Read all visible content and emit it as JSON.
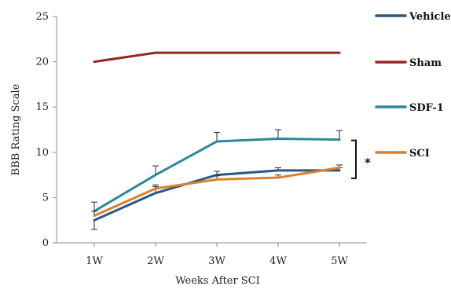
{
  "chart_data": {
    "type": "line",
    "xlabel": "Weeks After SCI",
    "ylabel": "BBB Rating Scale",
    "categories": [
      "1W",
      "2W",
      "3W",
      "4W",
      "5W"
    ],
    "ylim": [
      0,
      25
    ],
    "yticks": [
      0,
      5,
      10,
      15,
      20,
      25
    ],
    "grid": false,
    "legend_position": "right",
    "series": [
      {
        "name": "Vehicle",
        "color": "#2A5783",
        "values": [
          2.5,
          5.5,
          7.5,
          8.0,
          8.0
        ],
        "error": [
          1.0,
          0.7,
          0.4,
          0.3,
          0.3
        ]
      },
      {
        "name": "Sham",
        "color": "#962626",
        "values": [
          20,
          21,
          21,
          21,
          21
        ],
        "error": [
          0,
          0,
          0,
          0,
          0
        ]
      },
      {
        "name": "SDF-1",
        "color": "#2C8A9A",
        "values": [
          3.5,
          7.5,
          11.2,
          11.5,
          11.4
        ],
        "error": [
          1.0,
          1.0,
          1.0,
          1.0,
          1.0
        ]
      },
      {
        "name": "SCI",
        "color": "#D8812E",
        "values": [
          3.0,
          6.0,
          7.0,
          7.2,
          8.3
        ],
        "error": [
          0.5,
          0.4,
          0.4,
          0.3,
          0.3
        ]
      }
    ],
    "annotations": [
      {
        "text": "*",
        "type": "significance-bracket",
        "from_value": 8.0,
        "to_value": 11.4
      }
    ]
  }
}
